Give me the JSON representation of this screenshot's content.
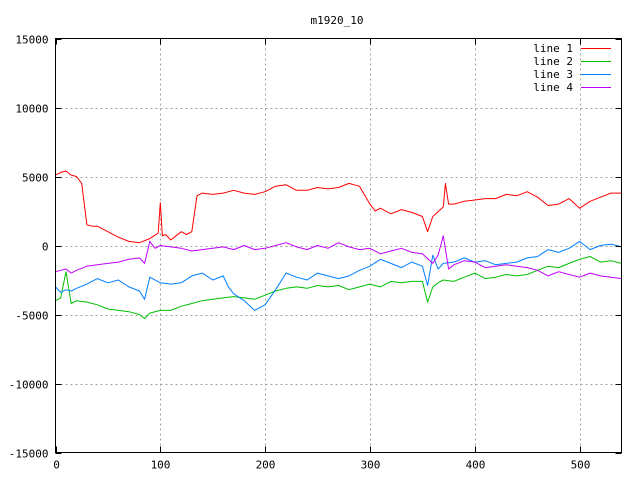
{
  "chart_data": {
    "type": "line",
    "title": "m1920_10",
    "xlabel": "",
    "ylabel": "",
    "xlim": [
      0,
      540
    ],
    "ylim": [
      -15000,
      15000
    ],
    "x_ticks": [
      0,
      100,
      200,
      300,
      400,
      500
    ],
    "y_ticks": [
      -15000,
      -10000,
      -5000,
      0,
      5000,
      10000,
      15000
    ],
    "grid": true,
    "legend_position": "top-right",
    "series": [
      {
        "name": "line 1",
        "color": "#ff0000",
        "x": [
          0,
          5,
          10,
          15,
          20,
          25,
          30,
          35,
          40,
          50,
          60,
          70,
          80,
          90,
          98,
          100,
          102,
          105,
          110,
          115,
          120,
          125,
          130,
          135,
          140,
          150,
          160,
          170,
          180,
          190,
          200,
          210,
          220,
          230,
          240,
          250,
          260,
          270,
          280,
          285,
          290,
          300,
          305,
          310,
          320,
          330,
          340,
          350,
          355,
          360,
          370,
          372,
          375,
          380,
          390,
          400,
          410,
          420,
          430,
          440,
          450,
          460,
          470,
          480,
          490,
          500,
          510,
          520,
          530,
          540
        ],
        "y": [
          5100,
          5300,
          5400,
          5100,
          5000,
          4500,
          1500,
          1400,
          1400,
          1000,
          600,
          300,
          200,
          500,
          900,
          3100,
          700,
          800,
          400,
          700,
          1000,
          800,
          1000,
          3600,
          3800,
          3700,
          3800,
          4000,
          3800,
          3700,
          3900,
          4300,
          4400,
          4000,
          4000,
          4200,
          4100,
          4200,
          4500,
          4400,
          4300,
          3000,
          2500,
          2700,
          2300,
          2600,
          2400,
          2100,
          1000,
          2100,
          2800,
          4500,
          3000,
          3000,
          3200,
          3300,
          3400,
          3400,
          3700,
          3600,
          3900,
          3500,
          2900,
          3000,
          3400,
          2700,
          3200,
          3500,
          3800,
          3800
        ]
      },
      {
        "name": "line 2",
        "color": "#00c000",
        "x": [
          0,
          5,
          10,
          15,
          20,
          30,
          40,
          50,
          60,
          70,
          80,
          85,
          90,
          100,
          110,
          120,
          130,
          140,
          150,
          160,
          170,
          180,
          190,
          200,
          210,
          220,
          230,
          240,
          250,
          260,
          270,
          280,
          290,
          300,
          310,
          320,
          330,
          340,
          350,
          355,
          360,
          365,
          370,
          380,
          390,
          400,
          410,
          420,
          430,
          440,
          450,
          460,
          470,
          480,
          490,
          500,
          510,
          520,
          530,
          540
        ],
        "y": [
          -4000,
          -3800,
          -1900,
          -4200,
          -4000,
          -4100,
          -4300,
          -4600,
          -4700,
          -4800,
          -5000,
          -5300,
          -4900,
          -4700,
          -4700,
          -4400,
          -4200,
          -4000,
          -3900,
          -3800,
          -3700,
          -3800,
          -3900,
          -3600,
          -3300,
          -3100,
          -3000,
          -3100,
          -2900,
          -3000,
          -2900,
          -3200,
          -3000,
          -2800,
          -3000,
          -2600,
          -2700,
          -2600,
          -2600,
          -4100,
          -3000,
          -2700,
          -2500,
          -2600,
          -2300,
          -2000,
          -2400,
          -2300,
          -2100,
          -2200,
          -2100,
          -1800,
          -1500,
          -1600,
          -1300,
          -1000,
          -800,
          -1200,
          -1100,
          -1300
        ]
      },
      {
        "name": "line 3",
        "color": "#0080ff",
        "x": [
          0,
          5,
          10,
          15,
          20,
          30,
          40,
          50,
          60,
          70,
          80,
          85,
          90,
          100,
          110,
          120,
          130,
          140,
          150,
          160,
          165,
          170,
          180,
          190,
          200,
          210,
          220,
          230,
          240,
          250,
          260,
          270,
          280,
          290,
          300,
          310,
          320,
          330,
          340,
          350,
          355,
          360,
          365,
          370,
          380,
          390,
          400,
          410,
          420,
          430,
          440,
          450,
          460,
          470,
          480,
          490,
          500,
          510,
          520,
          530,
          540
        ],
        "y": [
          -3000,
          -3400,
          -3200,
          -3300,
          -3100,
          -2800,
          -2400,
          -2700,
          -2500,
          -3000,
          -3300,
          -3900,
          -2300,
          -2700,
          -2800,
          -2700,
          -2200,
          -2000,
          -2500,
          -2200,
          -3000,
          -3500,
          -4000,
          -4700,
          -4300,
          -3200,
          -2000,
          -2300,
          -2500,
          -2000,
          -2200,
          -2400,
          -2200,
          -1800,
          -1500,
          -1000,
          -1300,
          -1600,
          -1200,
          -1500,
          -2900,
          -700,
          -1700,
          -1300,
          -1200,
          -900,
          -1200,
          -1100,
          -1400,
          -1300,
          -1200,
          -900,
          -800,
          -300,
          -500,
          -200,
          300,
          -300,
          0,
          100,
          -100
        ]
      },
      {
        "name": "line 4",
        "color": "#c000ff",
        "x": [
          0,
          5,
          10,
          15,
          20,
          30,
          40,
          50,
          60,
          70,
          80,
          85,
          90,
          95,
          100,
          110,
          120,
          130,
          140,
          150,
          160,
          170,
          180,
          190,
          200,
          210,
          220,
          230,
          240,
          250,
          260,
          270,
          280,
          290,
          300,
          310,
          320,
          330,
          340,
          350,
          360,
          365,
          370,
          375,
          380,
          390,
          400,
          410,
          420,
          430,
          440,
          450,
          460,
          470,
          480,
          490,
          500,
          510,
          520,
          530,
          540
        ],
        "y": [
          -1900,
          -1800,
          -1700,
          -2000,
          -1800,
          -1500,
          -1400,
          -1300,
          -1200,
          -1000,
          -900,
          -1300,
          300,
          -200,
          0,
          -100,
          -200,
          -400,
          -300,
          -200,
          -100,
          -300,
          0,
          -300,
          -200,
          0,
          200,
          -100,
          -300,
          0,
          -200,
          200,
          -100,
          -300,
          -200,
          -600,
          -400,
          -200,
          -500,
          -600,
          -1300,
          -700,
          700,
          -1700,
          -1400,
          -1100,
          -1200,
          -1600,
          -1500,
          -1400,
          -1500,
          -1600,
          -1800,
          -2200,
          -1900,
          -2100,
          -2300,
          -2000,
          -2200,
          -2300,
          -2400
        ]
      }
    ]
  }
}
